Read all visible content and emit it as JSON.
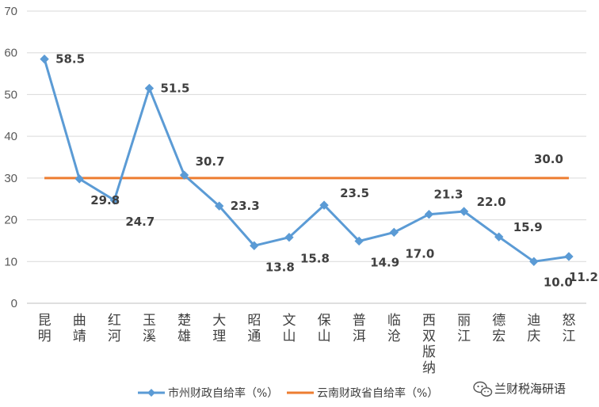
{
  "chart_data": {
    "type": "line",
    "categories": [
      "昆明",
      "曲靖",
      "红河",
      "玉溪",
      "楚雄",
      "大理",
      "昭通",
      "文山",
      "保山",
      "普洱",
      "临沧",
      "西双版纳",
      "丽江",
      "德宏",
      "迪庆",
      "怒江"
    ],
    "series": [
      {
        "name": "市州财政自给率（%）",
        "values": [
          58.5,
          29.8,
          24.7,
          51.5,
          30.7,
          23.3,
          13.8,
          15.8,
          23.5,
          14.9,
          17.0,
          21.3,
          22.0,
          15.9,
          10.0,
          11.2
        ],
        "color": "#5B9BD5",
        "marker": "diamond",
        "data_labels": [
          "58.5",
          "29.8",
          "24.7",
          "51.5",
          "30.7",
          "23.3",
          "13.8",
          "15.8",
          "23.5",
          "14.9",
          "17.0",
          "21.3",
          "22.0",
          "15.9",
          "10.0",
          "11.2"
        ]
      },
      {
        "name": "云南财政省自给率（%）",
        "values": [
          30.0,
          30.0,
          30.0,
          30.0,
          30.0,
          30.0,
          30.0,
          30.0,
          30.0,
          30.0,
          30.0,
          30.0,
          30.0,
          30.0,
          30.0,
          30.0
        ],
        "color": "#ED7D31",
        "marker": "none",
        "data_labels": [
          "30.0"
        ]
      }
    ],
    "yticks": [
      "0",
      "10",
      "20",
      "30",
      "40",
      "50",
      "60",
      "70"
    ],
    "ylim": [
      0,
      70
    ],
    "grid": true,
    "legend": "bottom"
  },
  "watermark": {
    "text": "兰财税海研语",
    "icon": "wechat-icon"
  }
}
